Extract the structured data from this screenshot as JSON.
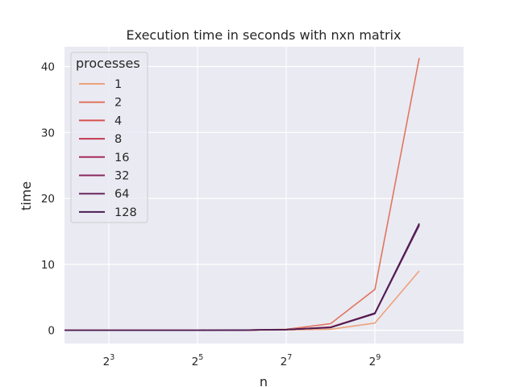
{
  "chart_data": {
    "type": "line",
    "title": "Execution time in seconds with nxn matrix",
    "xlabel": "n",
    "ylabel": "time",
    "xscale": "log2",
    "xlim": [
      4,
      2048
    ],
    "ylim": [
      -2,
      43
    ],
    "x_ticks": [
      {
        "value": 8,
        "base": "2",
        "exp": "3"
      },
      {
        "value": 32,
        "base": "2",
        "exp": "5"
      },
      {
        "value": 128,
        "base": "2",
        "exp": "7"
      },
      {
        "value": 512,
        "base": "2",
        "exp": "9"
      }
    ],
    "y_ticks": [
      0,
      10,
      20,
      30,
      40
    ],
    "grid": true,
    "legend": {
      "title": "processes",
      "position": "top-left"
    },
    "x": [
      4,
      8,
      16,
      32,
      64,
      128,
      256,
      512,
      1024
    ],
    "series": [
      {
        "name": "1",
        "color": "#eda27a",
        "values": [
          0,
          0,
          0,
          0,
          0.01,
          0.05,
          0.15,
          1.1,
          9.0
        ]
      },
      {
        "name": "2",
        "color": "#e07660",
        "values": [
          0,
          0,
          0,
          0,
          0.02,
          0.15,
          1.0,
          6.2,
          41.3
        ]
      },
      {
        "name": "4",
        "color": "#d6524e",
        "values": [
          0,
          0,
          0,
          0,
          0.02,
          0.1,
          0.5,
          2.6,
          16.1
        ]
      },
      {
        "name": "8",
        "color": "#c23a52",
        "values": [
          0,
          0,
          0,
          0,
          0.02,
          0.1,
          0.45,
          2.6,
          16.0
        ]
      },
      {
        "name": "16",
        "color": "#a62d5c",
        "values": [
          0,
          0,
          0,
          0,
          0.02,
          0.1,
          0.45,
          2.6,
          16.1
        ]
      },
      {
        "name": "32",
        "color": "#88285f",
        "values": [
          0,
          0,
          0,
          0,
          0.02,
          0.1,
          0.45,
          2.6,
          16.0
        ]
      },
      {
        "name": "64",
        "color": "#6b2460",
        "values": [
          0,
          0,
          0,
          0,
          0.02,
          0.1,
          0.42,
          2.5,
          15.9
        ]
      },
      {
        "name": "128",
        "color": "#4a1d54",
        "values": [
          0,
          0,
          0,
          0,
          0.02,
          0.1,
          0.4,
          2.6,
          16.2
        ]
      }
    ]
  }
}
